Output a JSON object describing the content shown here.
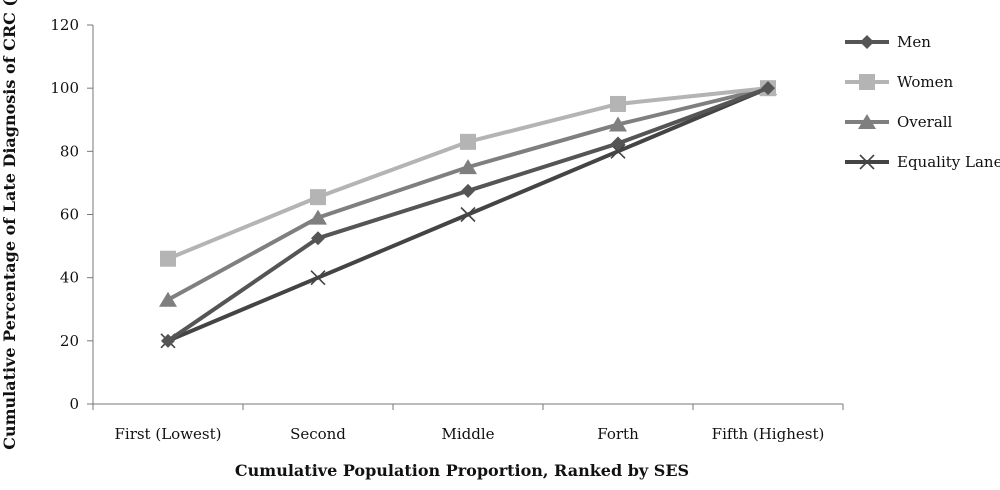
{
  "chart_data": {
    "type": "line",
    "title": "",
    "xlabel": "Cumulative Population Proportion, Ranked by SES",
    "ylabel": "Cumulative Percentage of Late Diagnosis of CRC (%)",
    "categories": [
      "First (Lowest)",
      "Second",
      "Middle",
      "Forth",
      "Fifth (Highest)"
    ],
    "ylim": [
      0,
      120
    ],
    "yticks": [
      0,
      20,
      40,
      60,
      80,
      100,
      120
    ],
    "grid": false,
    "legend_position": "right",
    "series": [
      {
        "name": "Men",
        "values": [
          20,
          52.5,
          67.5,
          82.5,
          100
        ],
        "color": "#555555",
        "marker": "diamond"
      },
      {
        "name": "Women",
        "values": [
          46,
          65.5,
          83,
          95,
          100
        ],
        "color": "#b4b4b4",
        "marker": "square"
      },
      {
        "name": "Overall",
        "values": [
          33,
          59,
          75,
          88.5,
          100
        ],
        "color": "#7f7f7f",
        "marker": "triangle"
      },
      {
        "name": "Equality Lane",
        "values": [
          20,
          40,
          60,
          80,
          100
        ],
        "color": "#444444",
        "marker": "x"
      }
    ]
  }
}
